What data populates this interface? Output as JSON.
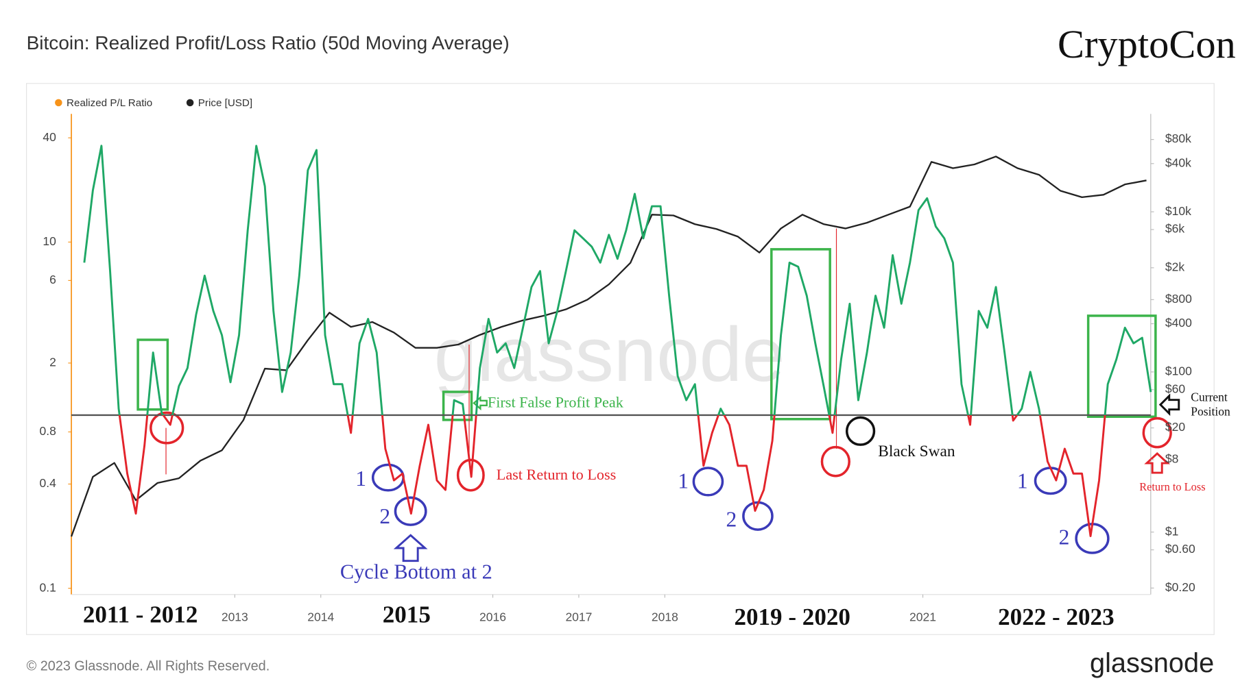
{
  "chart_data": {
    "type": "line",
    "title": "Bitcoin: Realized Profit/Loss Ratio (50d Moving Average)",
    "brand": "CryptoCon",
    "watermark": "glassnode",
    "footer": "© 2023 Glassnode. All Rights Reserved.",
    "logo": "glassnode",
    "log_scale": true,
    "grid": false,
    "legend": "top-left",
    "hline": 1,
    "xlim": [
      2011.1,
      2023.65
    ],
    "xticks": [
      2013,
      2014,
      2016,
      2017,
      2018,
      2021
    ],
    "ylim": [
      0.092,
      55
    ],
    "yticks": [
      0.1,
      0.4,
      0.8,
      2,
      6,
      10,
      40
    ],
    "y2lim": [
      0.166,
      167000
    ],
    "y2ticks": [
      {
        "value": 0.2,
        "label": "$0.20"
      },
      {
        "value": 0.6,
        "label": "$0.60"
      },
      {
        "value": 1,
        "label": "$1"
      },
      {
        "value": 8,
        "label": "$8"
      },
      {
        "value": 20,
        "label": "$20"
      },
      {
        "value": 60,
        "label": "$60"
      },
      {
        "value": 100,
        "label": "$100"
      },
      {
        "value": 400,
        "label": "$400"
      },
      {
        "value": 800,
        "label": "$800"
      },
      {
        "value": 2000,
        "label": "$2k"
      },
      {
        "value": 6000,
        "label": "$6k"
      },
      {
        "value": 10000,
        "label": "$10k"
      },
      {
        "value": 40000,
        "label": "$40k"
      },
      {
        "value": 80000,
        "label": "$80k"
      }
    ],
    "series": [
      {
        "name": "Realized P/L Ratio",
        "color": "#f7931a",
        "profit_color": "#1fa866",
        "loss_color": "#e3242b",
        "x": [
          2011.25,
          2011.35,
          2011.45,
          2011.55,
          2011.65,
          2011.75,
          2011.85,
          2011.95,
          2012.05,
          2012.15,
          2012.25,
          2012.35,
          2012.45,
          2012.55,
          2012.65,
          2012.75,
          2012.85,
          2012.95,
          2013.05,
          2013.15,
          2013.25,
          2013.35,
          2013.45,
          2013.55,
          2013.65,
          2013.75,
          2013.85,
          2013.95,
          2014.05,
          2014.15,
          2014.25,
          2014.35,
          2014.45,
          2014.55,
          2014.65,
          2014.75,
          2014.85,
          2014.95,
          2015.05,
          2015.15,
          2015.25,
          2015.35,
          2015.45,
          2015.55,
          2015.65,
          2015.75,
          2015.85,
          2015.95,
          2016.05,
          2016.15,
          2016.25,
          2016.35,
          2016.45,
          2016.55,
          2016.65,
          2016.75,
          2016.85,
          2016.95,
          2017.05,
          2017.15,
          2017.25,
          2017.35,
          2017.45,
          2017.55,
          2017.65,
          2017.75,
          2017.85,
          2017.95,
          2018.05,
          2018.15,
          2018.25,
          2018.35,
          2018.45,
          2018.55,
          2018.65,
          2018.75,
          2018.85,
          2018.95,
          2019.05,
          2019.15,
          2019.25,
          2019.35,
          2019.45,
          2019.55,
          2019.65,
          2019.75,
          2019.85,
          2019.95,
          2020.05,
          2020.15,
          2020.25,
          2020.35,
          2020.45,
          2020.55,
          2020.65,
          2020.75,
          2020.85,
          2020.95,
          2021.05,
          2021.15,
          2021.25,
          2021.35,
          2021.45,
          2021.55,
          2021.65,
          2021.75,
          2021.85,
          2021.95,
          2022.05,
          2022.15,
          2022.25,
          2022.35,
          2022.45,
          2022.55,
          2022.65,
          2022.75,
          2022.85,
          2022.95,
          2023.05,
          2023.15,
          2023.25,
          2023.35,
          2023.45,
          2023.55,
          2023.65
        ],
        "values": [
          7.6,
          19.9,
          36,
          6.8,
          1.09,
          0.46,
          0.27,
          0.67,
          2.3,
          1.03,
          0.88,
          1.47,
          1.87,
          3.8,
          6.4,
          4.0,
          2.9,
          1.55,
          2.9,
          11.7,
          36,
          21,
          4.0,
          1.36,
          2.3,
          6.4,
          26,
          34,
          2.9,
          1.51,
          1.51,
          0.79,
          2.6,
          3.6,
          2.3,
          0.64,
          0.42,
          0.46,
          0.27,
          0.51,
          0.88,
          0.42,
          0.37,
          1.22,
          1.16,
          0.44,
          1.87,
          3.6,
          2.3,
          2.6,
          1.87,
          3.2,
          5.5,
          6.8,
          2.6,
          4.0,
          6.8,
          11.7,
          10.5,
          9.4,
          7.6,
          11,
          8,
          11.7,
          19,
          10.5,
          16.1,
          16.1,
          4.9,
          1.68,
          1.22,
          1.51,
          0.51,
          0.79,
          1.09,
          0.88,
          0.51,
          0.51,
          0.28,
          0.37,
          0.71,
          2.9,
          7.6,
          7.2,
          4.9,
          2.6,
          1.45,
          0.79,
          2.1,
          4.4,
          1.22,
          2.3,
          4.9,
          3.2,
          8.4,
          4.4,
          7.6,
          15.3,
          17.9,
          12.3,
          10.5,
          7.6,
          1.51,
          0.88,
          4.0,
          3.2,
          5.5,
          2.3,
          0.93,
          1.09,
          1.78,
          1.09,
          0.54,
          0.42,
          0.64,
          0.46,
          0.46,
          0.2,
          0.42,
          1.51,
          2.1,
          3.2,
          2.6,
          2.8,
          1.36
        ]
      },
      {
        "name": "Price [USD]",
        "color": "#222222",
        "axis": "y2",
        "x": [
          2011.1,
          2011.35,
          2011.6,
          2011.85,
          2012.1,
          2012.35,
          2012.6,
          2012.85,
          2013.1,
          2013.35,
          2013.6,
          2013.85,
          2014.1,
          2014.35,
          2014.6,
          2014.85,
          2015.1,
          2015.35,
          2015.6,
          2015.85,
          2016.1,
          2016.35,
          2016.6,
          2016.85,
          2017.1,
          2017.35,
          2017.6,
          2017.85,
          2018.1,
          2018.35,
          2018.6,
          2018.85,
          2019.1,
          2019.35,
          2019.6,
          2019.85,
          2020.1,
          2020.35,
          2020.6,
          2020.85,
          2021.1,
          2021.35,
          2021.6,
          2021.85,
          2022.1,
          2022.35,
          2022.6,
          2022.85,
          2023.1,
          2023.35,
          2023.6
        ],
        "values": [
          0.88,
          4.9,
          7.3,
          2.5,
          4.1,
          4.7,
          7.8,
          10.5,
          25,
          110,
          105,
          250,
          550,
          365,
          420,
          310,
          200,
          200,
          220,
          290,
          365,
          440,
          505,
          605,
          800,
          1240,
          2300,
          9200,
          9000,
          7000,
          6100,
          4900,
          3100,
          6200,
          9200,
          7000,
          6200,
          7300,
          9200,
          11600,
          42000,
          35000,
          39000,
          49000,
          35000,
          29000,
          18300,
          15200,
          16300,
          22000,
          24700
        ]
      }
    ],
    "annotations": [
      "2011 - 2012",
      "2015",
      "2019 - 2020",
      "2022 - 2023",
      "First False Profit Peak",
      "Last Return to Loss",
      "Cycle Bottom at 2",
      "Black Swan",
      "Current",
      "Position",
      "Return to Loss",
      "1",
      "2",
      "1",
      "2",
      "1",
      "2"
    ]
  }
}
